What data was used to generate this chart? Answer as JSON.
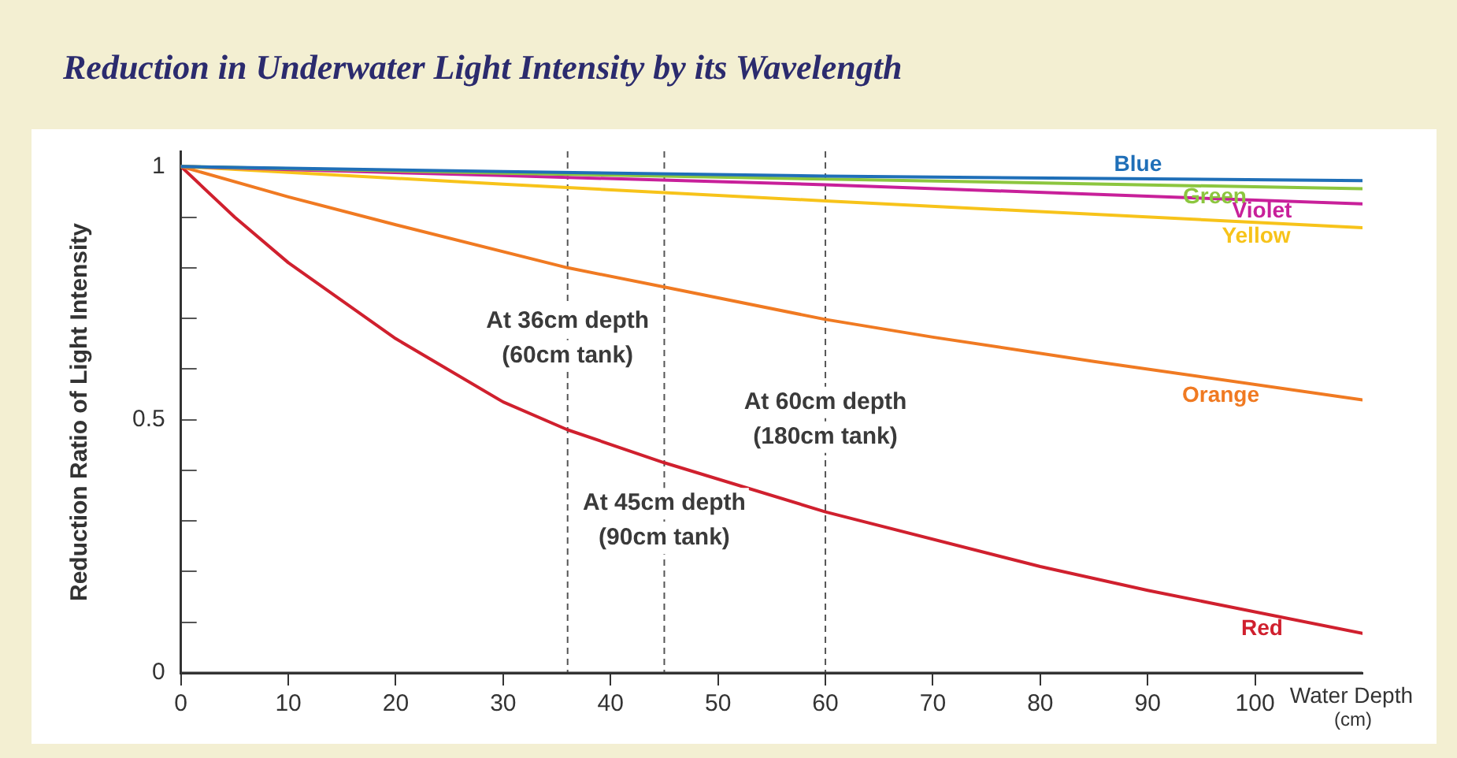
{
  "chart_data": {
    "type": "line",
    "title": "Reduction in Underwater Light Intensity by its Wavelength",
    "xlabel": "Water Depth\n(cm)",
    "ylabel": "Reduction Ratio of Light Intensity",
    "xlim": [
      0,
      110
    ],
    "xticks": [
      0,
      10,
      20,
      30,
      40,
      50,
      60,
      70,
      80,
      90,
      100
    ],
    "ylim": [
      0,
      1.03
    ],
    "yticks": [
      0,
      {
        "value": 0.1,
        "label": null
      },
      {
        "value": 0.2,
        "label": null
      },
      {
        "value": 0.3,
        "label": null
      },
      {
        "value": 0.4,
        "label": null
      },
      0.5,
      {
        "value": 0.6,
        "label": null
      },
      {
        "value": 0.7,
        "label": null
      },
      {
        "value": 0.8,
        "label": null
      },
      {
        "value": 0.9,
        "label": null
      },
      1
    ],
    "grid": false,
    "legend": false,
    "marker": "none",
    "line_style": "solid",
    "series": [
      {
        "name": "Blue",
        "color": "#1f6fb8",
        "x": [
          0,
          30,
          60,
          110
        ],
        "values": [
          1,
          0.99,
          0.981,
          0.972
        ]
      },
      {
        "name": "Green",
        "color": "#8cc63f",
        "x": [
          0,
          30,
          60,
          110
        ],
        "values": [
          1,
          0.987,
          0.975,
          0.956
        ]
      },
      {
        "name": "Violet",
        "color": "#c8209a",
        "x": [
          0,
          30,
          60,
          110
        ],
        "values": [
          1,
          0.982,
          0.964,
          0.926
        ]
      },
      {
        "name": "Yellow",
        "color": "#f7c31a",
        "x": [
          0,
          30,
          60,
          110
        ],
        "values": [
          1,
          0.965,
          0.932,
          0.879
        ]
      },
      {
        "name": "Orange",
        "color": "#f07a22",
        "x": [
          0,
          10,
          20,
          36,
          45,
          60,
          70,
          85,
          110
        ],
        "values": [
          1,
          0.94,
          0.885,
          0.8,
          0.762,
          0.698,
          0.663,
          0.615,
          0.539
        ]
      },
      {
        "name": "Red",
        "color": "#d0202e",
        "x": [
          0,
          5,
          10,
          20,
          30,
          36,
          45,
          60,
          80,
          90,
          110
        ],
        "values": [
          1,
          0.9,
          0.81,
          0.66,
          0.535,
          0.48,
          0.415,
          0.318,
          0.21,
          0.163,
          0.078
        ]
      }
    ],
    "ref_lines": [
      {
        "axis": "x",
        "value": 36,
        "label": "At 36cm depth\n(60cm tank)",
        "line_style": "dashed",
        "color": "#555555"
      },
      {
        "axis": "x",
        "value": 45,
        "label": "At 45cm depth\n(90cm tank)",
        "line_style": "dashed",
        "color": "#555555"
      },
      {
        "axis": "x",
        "value": 60,
        "label": "At 60cm depth\n(180cm tank)",
        "line_style": "dashed",
        "color": "#555555"
      }
    ]
  }
}
